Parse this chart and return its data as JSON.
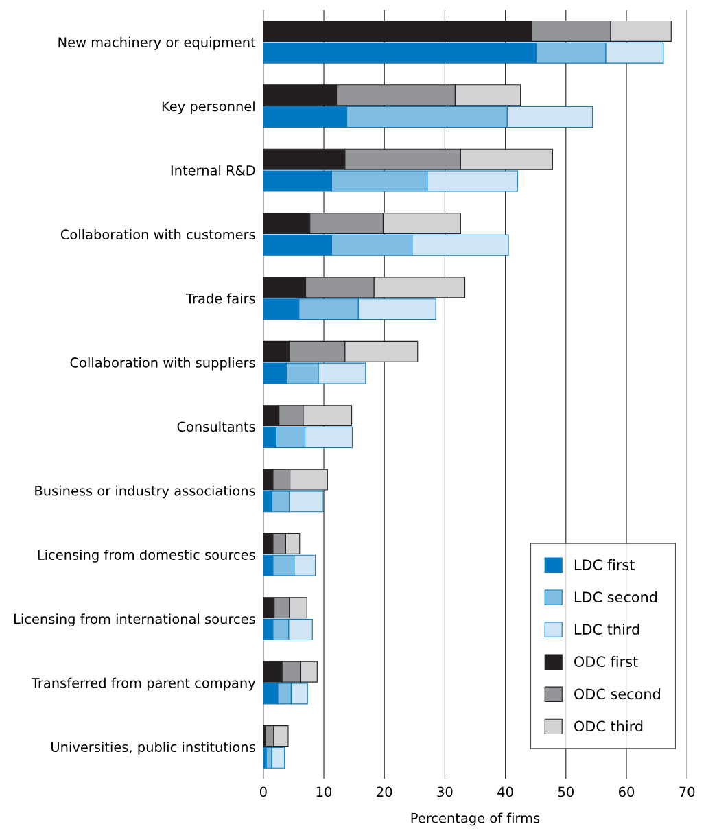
{
  "chart_data": {
    "type": "bar",
    "orientation": "horizontal",
    "xlabel": "Percentage of firms",
    "categories": [
      "New machinery or equipment",
      "Key personnel",
      "Internal R&D",
      "Collaboration with customers",
      "Trade fairs",
      "Collaboration with suppliers",
      "Consultants",
      "Business or industry associations",
      "Licensing from domestic sources",
      "Licensing from international sources",
      "Transferred from parent company",
      "Universities, public institutions"
    ],
    "series": [
      {
        "name": "LDC first",
        "color": "#0079c2",
        "base": [
          0,
          0,
          0,
          0,
          0,
          0,
          0,
          0,
          0,
          0,
          0,
          0
        ],
        "values": [
          45.1,
          13.8,
          11.3,
          11.3,
          5.9,
          3.8,
          2.1,
          1.4,
          1.6,
          1.6,
          2.4,
          0.5
        ]
      },
      {
        "name": "LDC second",
        "color": "#7fbde3",
        "base": [
          45.1,
          13.8,
          11.3,
          11.3,
          5.9,
          3.8,
          2.1,
          1.4,
          1.6,
          1.6,
          2.4,
          0.5
        ],
        "values": [
          11.5,
          26.5,
          15.8,
          13.3,
          9.8,
          5.3,
          4.8,
          2.9,
          3.5,
          2.6,
          2.2,
          0.9
        ]
      },
      {
        "name": "LDC third",
        "color": "#cfe5f5",
        "base": [
          56.6,
          40.3,
          27.1,
          24.6,
          15.7,
          9.1,
          6.9,
          4.3,
          5.1,
          4.2,
          4.6,
          1.4
        ],
        "values": [
          9.5,
          14.1,
          14.9,
          15.9,
          12.8,
          7.8,
          7.8,
          5.6,
          3.5,
          3.9,
          2.7,
          2.1
        ]
      },
      {
        "name": "ODC first",
        "color": "#231f20",
        "base": [
          0,
          0,
          0,
          0,
          0,
          0,
          0,
          0,
          0,
          0,
          0,
          0
        ],
        "values": [
          44.4,
          12.1,
          13.5,
          7.7,
          7.0,
          4.3,
          2.6,
          1.6,
          1.6,
          1.8,
          3.1,
          0.4
        ]
      },
      {
        "name": "ODC second",
        "color": "#939598",
        "base": [
          44.4,
          12.1,
          13.5,
          7.7,
          7.0,
          4.3,
          2.6,
          1.6,
          1.6,
          1.8,
          3.1,
          0.4
        ],
        "values": [
          13.0,
          19.6,
          19.1,
          12.1,
          11.3,
          9.2,
          4.0,
          2.8,
          2.1,
          2.5,
          3.0,
          1.3
        ]
      },
      {
        "name": "ODC third",
        "color": "#d1d2d4",
        "base": [
          57.4,
          31.7,
          32.6,
          19.8,
          18.3,
          13.5,
          6.6,
          4.4,
          3.7,
          4.3,
          6.1,
          1.7
        ],
        "values": [
          10.0,
          10.8,
          15.2,
          12.8,
          15.0,
          12.0,
          8.0,
          6.2,
          2.3,
          2.9,
          2.8,
          2.4
        ]
      }
    ],
    "xlim": [
      0,
      70
    ],
    "xticks": [
      0,
      10,
      20,
      30,
      40,
      50,
      60,
      70
    ],
    "grid": "x",
    "legend": "bottom right"
  }
}
